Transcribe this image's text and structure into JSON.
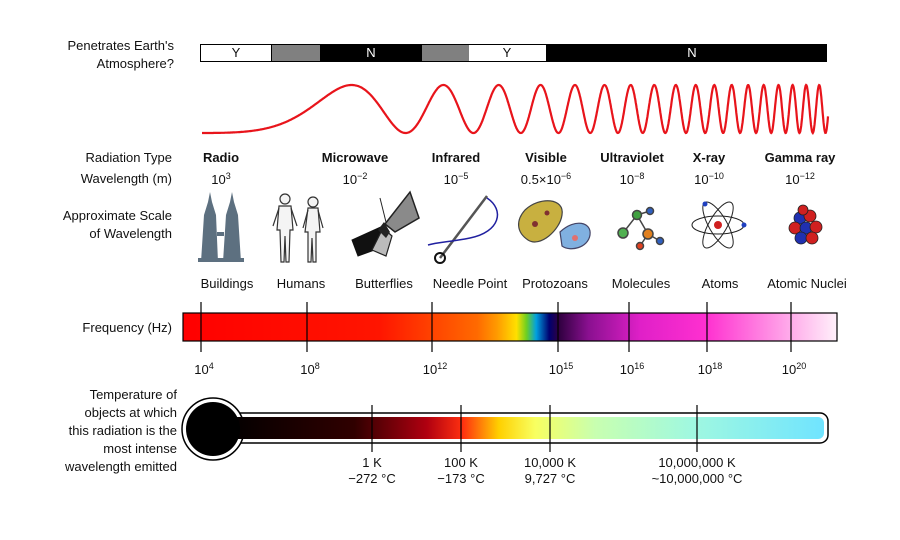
{
  "labels": {
    "penetrates": "Penetrates Earth's",
    "atmosphere": "Atmosphere?",
    "radiation_type": "Radiation Type",
    "wavelength": "Wavelength (m)",
    "approx_scale": "Approximate Scale",
    "of_wavelength": "of Wavelength",
    "frequency": "Frequency (Hz)",
    "temp_line1": "Temperature of",
    "temp_line2": "objects at which",
    "temp_line3": "this radiation is the",
    "temp_line4": "most intense",
    "temp_line5": "wavelength emitted"
  },
  "atmosphere_bar": {
    "segments": [
      {
        "label": "Y",
        "value": "Y"
      },
      {
        "label": "",
        "value": "partial"
      },
      {
        "label": "N",
        "value": "N"
      },
      {
        "label": "",
        "value": "partial"
      },
      {
        "label": "Y",
        "value": "Y"
      },
      {
        "label": "N",
        "value": "N"
      }
    ]
  },
  "radiation_types": [
    {
      "name": "Radio",
      "wl_base": "10",
      "wl_exp": "3"
    },
    {
      "name": "Microwave",
      "wl_base": "10",
      "wl_exp": "−2"
    },
    {
      "name": "Infrared",
      "wl_base": "10",
      "wl_exp": "−5"
    },
    {
      "name": "Visible",
      "wl_base": "0.5×10",
      "wl_exp": "−6"
    },
    {
      "name": "Ultraviolet",
      "wl_base": "10",
      "wl_exp": "−8"
    },
    {
      "name": "X-ray",
      "wl_base": "10",
      "wl_exp": "−10"
    },
    {
      "name": "Gamma ray",
      "wl_base": "10",
      "wl_exp": "−12"
    }
  ],
  "scale_objects": [
    {
      "label": "Buildings",
      "icon": "buildings-icon"
    },
    {
      "label": "Humans",
      "icon": "humans-icon"
    },
    {
      "label": "Butterflies",
      "icon": "butterfly-icon"
    },
    {
      "label": "Needle Point",
      "icon": "needle-icon"
    },
    {
      "label": "Protozoans",
      "icon": "protozoan-icon"
    },
    {
      "label": "Molecules",
      "icon": "molecule-icon"
    },
    {
      "label": "Atoms",
      "icon": "atom-icon"
    },
    {
      "label": "Atomic Nuclei",
      "icon": "nucleus-icon"
    }
  ],
  "frequency_ticks": [
    {
      "base": "10",
      "exp": "4"
    },
    {
      "base": "10",
      "exp": "8"
    },
    {
      "base": "10",
      "exp": "12"
    },
    {
      "base": "10",
      "exp": "15"
    },
    {
      "base": "10",
      "exp": "16"
    },
    {
      "base": "10",
      "exp": "18"
    },
    {
      "base": "10",
      "exp": "20"
    }
  ],
  "temperature_ticks": [
    {
      "kelvin": "1 K",
      "celsius": "−272 °C"
    },
    {
      "kelvin": "100 K",
      "celsius": "−173 °C"
    },
    {
      "kelvin": "10,000 K",
      "celsius": "9,727 °C"
    },
    {
      "kelvin": "10,000,000 K",
      "celsius": "~10,000,000 °C"
    }
  ],
  "colors": {
    "wave": "#e8141b",
    "bar_black": "#000000",
    "bar_gray": "#808080",
    "steel": "#5d7080"
  }
}
